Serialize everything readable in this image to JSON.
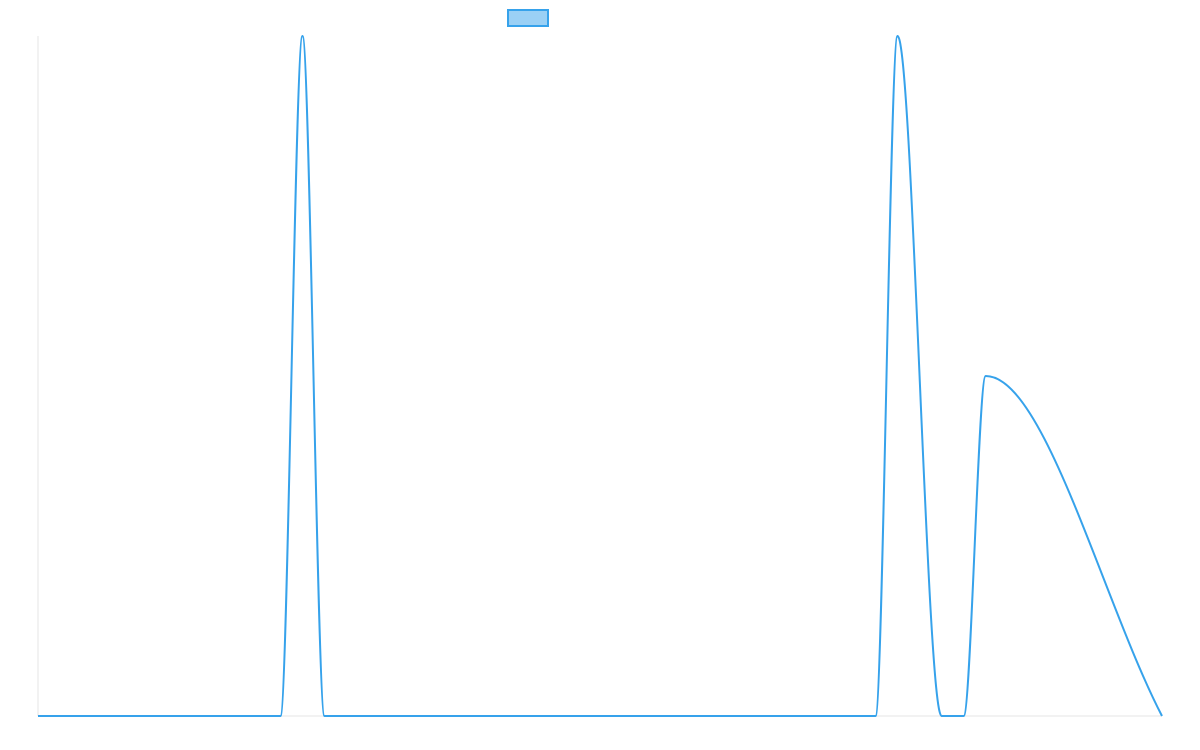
{
  "chart_data": {
    "type": "line",
    "title": "",
    "xlabel": "",
    "ylabel": "",
    "legend": {
      "position": "top-center",
      "entries": [
        {
          "label": "",
          "color": "#36A2EB",
          "fill": "#9AD0F5"
        }
      ]
    },
    "grid": false,
    "xlim": [
      0,
      51
    ],
    "ylim": [
      0,
      1
    ],
    "series": [
      {
        "color": "#36A2EB",
        "x": [
          0,
          11,
          12,
          13,
          38,
          39,
          41,
          42,
          43,
          51
        ],
        "values": [
          0,
          0,
          1,
          0,
          0,
          1,
          0,
          0,
          0.5,
          0
        ]
      }
    ]
  },
  "colors": {
    "line": "#36A2EB",
    "legend_fill": "#9AD0F5",
    "axis": "#E6E6E6"
  }
}
